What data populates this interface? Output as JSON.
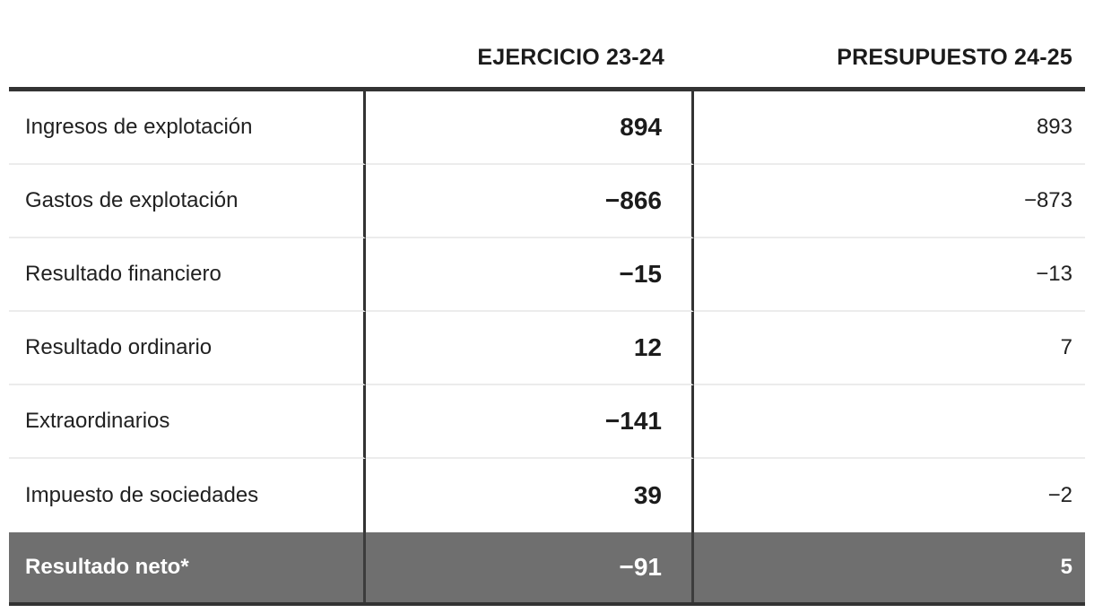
{
  "table": {
    "headers": {
      "ejercicio": "EJERCICIO 23-24",
      "presupuesto": "PRESUPUESTO 24-25"
    },
    "rows": [
      {
        "label": "Ingresos de explotación",
        "ejercicio": "894",
        "presupuesto": "893"
      },
      {
        "label": "Gastos de explotación",
        "ejercicio": "−866",
        "presupuesto": "−873"
      },
      {
        "label": "Resultado financiero",
        "ejercicio": "−15",
        "presupuesto": "−13"
      },
      {
        "label": "Resultado ordinario",
        "ejercicio": "12",
        "presupuesto": "7"
      },
      {
        "label": "Extraordinarios",
        "ejercicio": "−141",
        "presupuesto": ""
      },
      {
        "label": "Impuesto de sociedades",
        "ejercicio": "39",
        "presupuesto": "−2"
      },
      {
        "label": "Resultado neto*",
        "ejercicio": "−91",
        "presupuesto": "5"
      }
    ]
  },
  "colors": {
    "text": "#212121",
    "heavy_rule": "#333333",
    "light_rule": "#ececec",
    "highlight_row_bg": "#6f6f6f",
    "highlight_row_text": "#ffffff"
  },
  "chart_data": {
    "type": "table",
    "title": "",
    "columns": [
      "",
      "EJERCICIO 23-24",
      "PRESUPUESTO 24-25"
    ],
    "rows": [
      [
        "Ingresos de explotación",
        894,
        893
      ],
      [
        "Gastos de explotación",
        -866,
        -873
      ],
      [
        "Resultado financiero",
        -15,
        -13
      ],
      [
        "Resultado ordinario",
        12,
        7
      ],
      [
        "Extraordinarios",
        -141,
        null
      ],
      [
        "Impuesto de sociedades",
        39,
        -2
      ],
      [
        "Resultado neto*",
        -91,
        5
      ]
    ]
  }
}
